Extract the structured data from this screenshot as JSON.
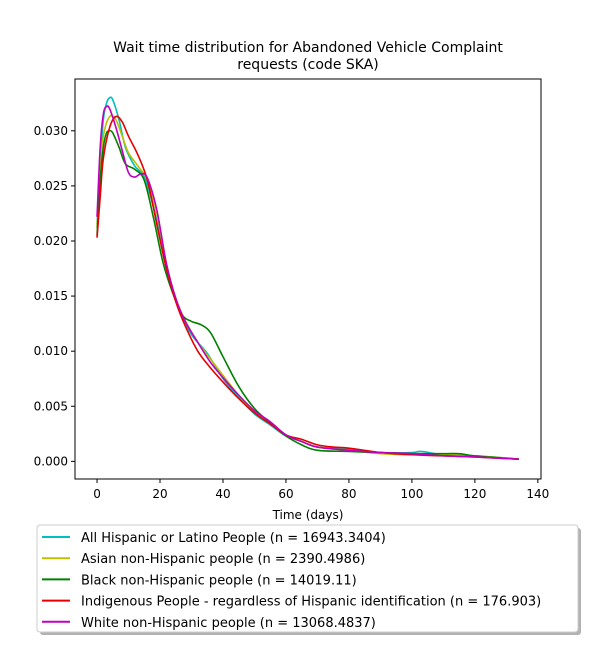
{
  "chart_data": {
    "type": "line",
    "title_lines": [
      "Wait time distribution  for Abandoned Vehicle Complaint",
      "requests (code SKA)"
    ],
    "xlabel": "Time (days)",
    "ylabel": "",
    "xlim": [
      -7,
      141
    ],
    "ylim": [
      -0.0016,
      0.0347
    ],
    "xticks": [
      0,
      20,
      40,
      60,
      80,
      100,
      120,
      140
    ],
    "yticks": [
      0.0,
      0.005,
      0.01,
      0.015,
      0.02,
      0.025,
      0.03
    ],
    "xtick_labels": [
      "0",
      "20",
      "40",
      "60",
      "80",
      "100",
      "120",
      "140"
    ],
    "ytick_labels": [
      "0.000",
      "0.005",
      "0.010",
      "0.015",
      "0.020",
      "0.025",
      "0.030"
    ],
    "legend_position": "below plot",
    "series": [
      {
        "name": "All Hispanic or Latino People (n = 16943.3404)",
        "color": "#00bfbf",
        "points": [
          [
            0,
            0.0215
          ],
          [
            1,
            0.027
          ],
          [
            2,
            0.031
          ],
          [
            3,
            0.0325
          ],
          [
            4,
            0.033
          ],
          [
            5,
            0.0328
          ],
          [
            7,
            0.031
          ],
          [
            9,
            0.0285
          ],
          [
            12,
            0.0268
          ],
          [
            15,
            0.0258
          ],
          [
            18,
            0.023
          ],
          [
            20,
            0.0205
          ],
          [
            23,
            0.0165
          ],
          [
            26,
            0.0138
          ],
          [
            30,
            0.0115
          ],
          [
            35,
            0.0098
          ],
          [
            40,
            0.0075
          ],
          [
            45,
            0.0058
          ],
          [
            50,
            0.0043
          ],
          [
            55,
            0.0033
          ],
          [
            60,
            0.0023
          ],
          [
            65,
            0.0018
          ],
          [
            70,
            0.0013
          ],
          [
            80,
            0.0011
          ],
          [
            90,
            0.0008
          ],
          [
            100,
            0.0008
          ],
          [
            103,
            0.0009
          ],
          [
            110,
            0.0006
          ],
          [
            120,
            0.0005
          ],
          [
            130,
            0.0003
          ],
          [
            134,
            0.0002
          ]
        ]
      },
      {
        "name": "Asian non-Hispanic people (n = 2390.4986)",
        "color": "#bfbf00",
        "points": [
          [
            0,
            0.0212
          ],
          [
            1,
            0.026
          ],
          [
            2,
            0.0295
          ],
          [
            4,
            0.0313
          ],
          [
            6,
            0.031
          ],
          [
            8,
            0.0295
          ],
          [
            10,
            0.028
          ],
          [
            13,
            0.0268
          ],
          [
            16,
            0.0255
          ],
          [
            19,
            0.0225
          ],
          [
            22,
            0.018
          ],
          [
            25,
            0.0148
          ],
          [
            28,
            0.0128
          ],
          [
            32,
            0.0108
          ],
          [
            36,
            0.0093
          ],
          [
            40,
            0.0078
          ],
          [
            45,
            0.006
          ],
          [
            50,
            0.0045
          ],
          [
            55,
            0.0035
          ],
          [
            60,
            0.0024
          ],
          [
            65,
            0.0018
          ],
          [
            70,
            0.0013
          ],
          [
            80,
            0.001
          ],
          [
            90,
            0.0007
          ],
          [
            100,
            0.0006
          ],
          [
            110,
            0.0006
          ],
          [
            120,
            0.0005
          ],
          [
            134,
            0.0002
          ]
        ]
      },
      {
        "name": "Black non-Hispanic people (n = 14019.11)",
        "color": "#008000",
        "points": [
          [
            0,
            0.0205
          ],
          [
            1,
            0.0255
          ],
          [
            2,
            0.0285
          ],
          [
            3,
            0.0298
          ],
          [
            4,
            0.03
          ],
          [
            5,
            0.0298
          ],
          [
            7,
            0.0285
          ],
          [
            9,
            0.027
          ],
          [
            12,
            0.0265
          ],
          [
            15,
            0.0255
          ],
          [
            18,
            0.022
          ],
          [
            21,
            0.018
          ],
          [
            24,
            0.0153
          ],
          [
            27,
            0.0133
          ],
          [
            30,
            0.0127
          ],
          [
            33,
            0.0124
          ],
          [
            36,
            0.0117
          ],
          [
            40,
            0.0095
          ],
          [
            45,
            0.0068
          ],
          [
            50,
            0.0048
          ],
          [
            55,
            0.0035
          ],
          [
            60,
            0.0023
          ],
          [
            65,
            0.0015
          ],
          [
            70,
            0.001
          ],
          [
            80,
            0.0009
          ],
          [
            90,
            0.0008
          ],
          [
            100,
            0.0007
          ],
          [
            110,
            0.0007
          ],
          [
            115,
            0.0007
          ],
          [
            120,
            0.0005
          ],
          [
            134,
            0.0002
          ]
        ]
      },
      {
        "name": "Indigenous People - regardless of Hispanic identification (n = 176.903)",
        "color": "#e60000",
        "points": [
          [
            0,
            0.0203
          ],
          [
            1,
            0.024
          ],
          [
            2,
            0.0275
          ],
          [
            4,
            0.0303
          ],
          [
            6,
            0.0313
          ],
          [
            8,
            0.0308
          ],
          [
            10,
            0.0295
          ],
          [
            13,
            0.0278
          ],
          [
            16,
            0.0255
          ],
          [
            19,
            0.0215
          ],
          [
            22,
            0.0175
          ],
          [
            25,
            0.0145
          ],
          [
            28,
            0.0123
          ],
          [
            32,
            0.01
          ],
          [
            36,
            0.0085
          ],
          [
            40,
            0.0072
          ],
          [
            45,
            0.0057
          ],
          [
            50,
            0.0044
          ],
          [
            55,
            0.0034
          ],
          [
            60,
            0.0024
          ],
          [
            65,
            0.002
          ],
          [
            70,
            0.0015
          ],
          [
            75,
            0.0013
          ],
          [
            80,
            0.0012
          ],
          [
            90,
            0.0008
          ],
          [
            100,
            0.0006
          ],
          [
            110,
            0.0005
          ],
          [
            120,
            0.0004
          ],
          [
            134,
            0.0002
          ]
        ]
      },
      {
        "name": "White non-Hispanic people (n = 13068.4837)",
        "color": "#bf00bf",
        "points": [
          [
            0,
            0.0222
          ],
          [
            1,
            0.0285
          ],
          [
            2,
            0.0315
          ],
          [
            3,
            0.0322
          ],
          [
            4,
            0.032
          ],
          [
            6,
            0.0303
          ],
          [
            8,
            0.0282
          ],
          [
            10,
            0.0262
          ],
          [
            12,
            0.0258
          ],
          [
            14,
            0.0261
          ],
          [
            16,
            0.0257
          ],
          [
            19,
            0.0228
          ],
          [
            22,
            0.018
          ],
          [
            25,
            0.0148
          ],
          [
            28,
            0.0127
          ],
          [
            32,
            0.0108
          ],
          [
            36,
            0.009
          ],
          [
            40,
            0.0076
          ],
          [
            45,
            0.006
          ],
          [
            50,
            0.0046
          ],
          [
            55,
            0.0036
          ],
          [
            60,
            0.0024
          ],
          [
            65,
            0.0018
          ],
          [
            70,
            0.0013
          ],
          [
            80,
            0.001
          ],
          [
            90,
            0.0008
          ],
          [
            100,
            0.0007
          ],
          [
            110,
            0.0005
          ],
          [
            120,
            0.0004
          ],
          [
            134,
            0.0002
          ]
        ]
      }
    ]
  }
}
